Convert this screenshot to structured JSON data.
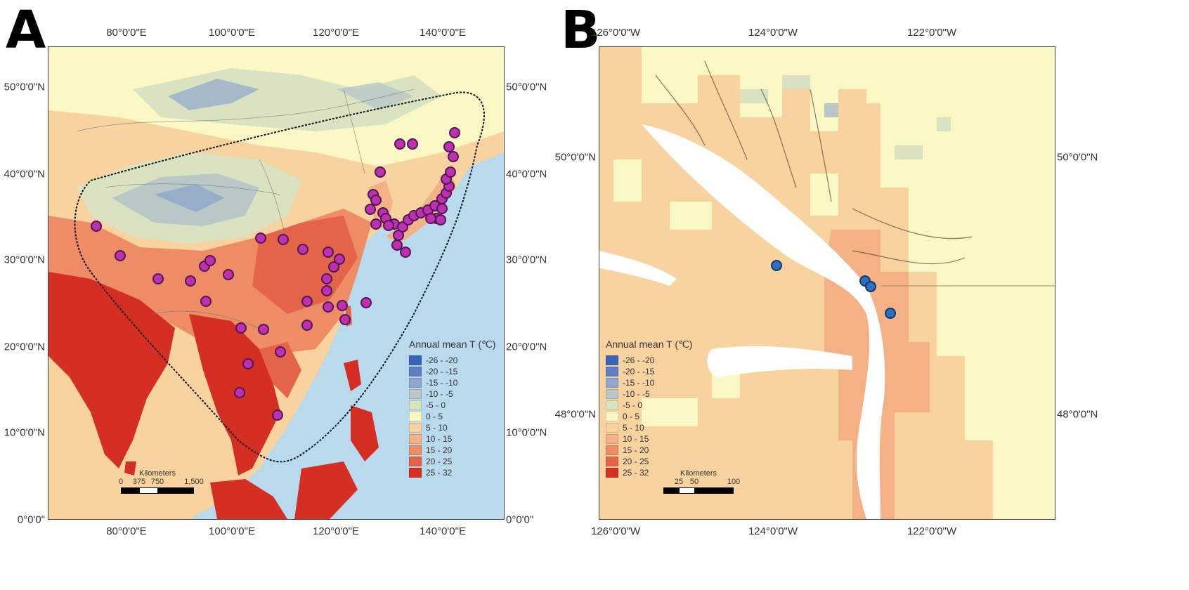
{
  "panel_a": {
    "letter": "A",
    "top_ticks": [
      "80°0'0\"E",
      "100°0'0\"E",
      "120°0'0\"E",
      "140°0'0\"E"
    ],
    "bottom_ticks": [
      "80°0'0\"E",
      "100°0'0\"E",
      "120°0'0\"E",
      "140°0'0\"E"
    ],
    "left_ticks": [
      "50°0'0\"N",
      "40°0'0\"N",
      "30°0'0\"N",
      "20°0'0\"N",
      "10°0'0\"N",
      "0°0'0\""
    ],
    "right_ticks": [
      "50°0'0\"N",
      "40°0'0\"N",
      "30°0'0\"N",
      "20°0'0\"N",
      "10°0'0\"N",
      "0°0'0\""
    ],
    "scale": {
      "title": "Kilometers",
      "ticks": [
        "0",
        "375",
        "750",
        "1,500"
      ]
    }
  },
  "panel_b": {
    "letter": "B",
    "top_ticks": [
      "126°0'0\"W",
      "124°0'0\"W",
      "122°0'0\"W"
    ],
    "bottom_ticks": [
      "126°0'0\"W",
      "124°0'0\"W",
      "122°0'0\"W"
    ],
    "left_ticks": [
      "50°0'0\"N",
      "48°0'0\"N"
    ],
    "right_ticks": [
      "50°0'0\"N",
      "48°0'0\"N"
    ],
    "scale": {
      "title": "Kilometers",
      "ticks": [
        "25",
        "50",
        "100"
      ]
    }
  },
  "legend": {
    "title": "Annual mean T (℃)",
    "classes": [
      {
        "label": "-26 - -20",
        "color": "#3b63b8"
      },
      {
        "label": "-20 - -15",
        "color": "#5f7fc4"
      },
      {
        "label": "-15 - -10",
        "color": "#8ea7cc"
      },
      {
        "label": "-10 - -5",
        "color": "#b9c7c6"
      },
      {
        "label": "-5 - 0",
        "color": "#d9e3c2"
      },
      {
        "label": "0 - 5",
        "color": "#fbf8c6"
      },
      {
        "label": "5 - 10",
        "color": "#f8d3a0"
      },
      {
        "label": "10 - 15",
        "color": "#f4b185"
      },
      {
        "label": "15 - 20",
        "color": "#ee8c66"
      },
      {
        "label": "20 - 25",
        "color": "#e4644a"
      },
      {
        "label": "25 - 32",
        "color": "#d52f24"
      }
    ]
  }
}
